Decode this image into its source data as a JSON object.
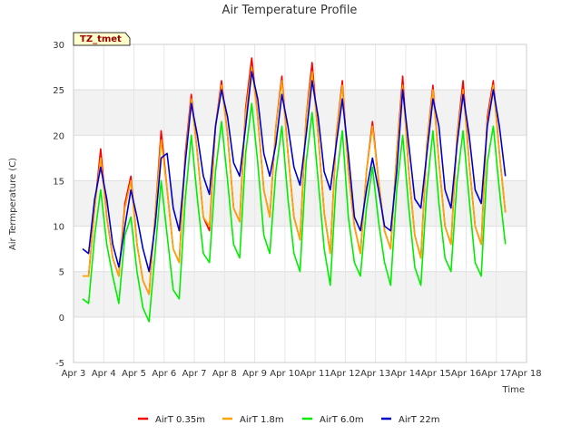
{
  "chart_data": {
    "type": "line",
    "title": "Air Temperature Profile",
    "xlabel": "Time",
    "ylabel": "Air Termperature (C)",
    "badge": "TZ_tmet",
    "xlim": [
      3,
      18
    ],
    "ylim": [
      -5,
      30
    ],
    "x_ticks": [
      "Apr 3",
      "Apr 4",
      "Apr 5",
      "Apr 6",
      "Apr 7",
      "Apr 8",
      "Apr 9",
      "Apr 10",
      "Apr 11",
      "Apr 12",
      "Apr 13",
      "Apr 14",
      "Apr 15",
      "Apr 16",
      "Apr 17",
      "Apr 18"
    ],
    "y_ticks": [
      -5,
      0,
      5,
      10,
      15,
      20,
      25,
      30
    ],
    "grid": true,
    "legend_position": "bottom",
    "x": [
      3.3,
      3.5,
      3.7,
      3.9,
      4.1,
      4.3,
      4.5,
      4.7,
      4.9,
      5.1,
      5.3,
      5.5,
      5.7,
      5.9,
      6.1,
      6.3,
      6.5,
      6.7,
      6.9,
      7.1,
      7.3,
      7.5,
      7.7,
      7.9,
      8.1,
      8.3,
      8.5,
      8.7,
      8.9,
      9.1,
      9.3,
      9.5,
      9.7,
      9.9,
      10.1,
      10.3,
      10.5,
      10.7,
      10.9,
      11.1,
      11.3,
      11.5,
      11.7,
      11.9,
      12.1,
      12.3,
      12.5,
      12.7,
      12.9,
      13.1,
      13.3,
      13.5,
      13.7,
      13.9,
      14.1,
      14.3,
      14.5,
      14.7,
      14.9,
      15.1,
      15.3,
      15.5,
      15.7,
      15.9,
      16.1,
      16.3,
      16.5,
      16.7,
      16.9,
      17.1,
      17.3
    ],
    "series": [
      {
        "name": "AirT 0.35m",
        "color": "#ff0000",
        "values": [
          4.5,
          4.5,
          12.0,
          18.5,
          11.0,
          6.5,
          4.5,
          12.5,
          15.5,
          8.0,
          4.0,
          2.5,
          11.0,
          20.5,
          14.0,
          7.5,
          6.0,
          18.0,
          24.5,
          18.0,
          11.0,
          9.5,
          21.0,
          26.0,
          20.0,
          12.0,
          10.5,
          23.0,
          28.5,
          22.0,
          14.0,
          11.0,
          21.0,
          26.5,
          18.0,
          11.0,
          8.5,
          22.0,
          28.0,
          20.0,
          11.5,
          7.0,
          20.0,
          26.0,
          16.0,
          10.0,
          7.0,
          16.0,
          21.5,
          15.0,
          9.5,
          7.5,
          18.0,
          26.5,
          16.0,
          9.0,
          6.5,
          19.0,
          25.5,
          17.0,
          10.0,
          8.0,
          20.0,
          26.0,
          17.0,
          10.0,
          8.0,
          22.0,
          26.0,
          18.0,
          11.5
        ]
      },
      {
        "name": "AirT 1.8m",
        "color": "#ffa500",
        "values": [
          4.5,
          4.5,
          12.0,
          17.5,
          11.0,
          6.5,
          4.5,
          12.0,
          15.0,
          8.0,
          4.0,
          2.5,
          11.0,
          19.5,
          14.0,
          7.5,
          6.0,
          17.5,
          24.0,
          18.0,
          11.0,
          10.0,
          21.0,
          25.5,
          20.0,
          12.0,
          10.5,
          22.5,
          27.5,
          22.0,
          14.0,
          11.0,
          21.0,
          26.0,
          18.0,
          11.0,
          8.5,
          22.0,
          27.0,
          20.0,
          11.5,
          7.0,
          20.0,
          25.5,
          16.0,
          10.0,
          7.0,
          16.0,
          21.0,
          15.0,
          9.5,
          7.5,
          18.0,
          25.5,
          16.0,
          9.0,
          6.5,
          19.0,
          25.0,
          17.0,
          10.0,
          8.0,
          20.0,
          25.0,
          17.0,
          10.0,
          8.0,
          21.5,
          25.5,
          18.0,
          11.5
        ]
      },
      {
        "name": "AirT 6.0m",
        "color": "#00ee00",
        "values": [
          2.0,
          1.5,
          9.0,
          14.0,
          8.0,
          4.5,
          1.5,
          9.0,
          11.0,
          5.0,
          1.0,
          -0.5,
          7.0,
          15.0,
          9.0,
          3.0,
          2.0,
          13.0,
          20.0,
          13.0,
          7.0,
          6.0,
          16.0,
          21.5,
          15.0,
          8.0,
          6.5,
          18.0,
          23.5,
          17.0,
          9.0,
          7.0,
          16.0,
          21.0,
          13.0,
          7.0,
          5.0,
          17.0,
          22.5,
          15.0,
          7.5,
          3.5,
          15.0,
          20.5,
          11.0,
          6.0,
          4.5,
          12.0,
          16.5,
          10.5,
          6.0,
          3.5,
          14.0,
          20.0,
          12.0,
          5.5,
          3.5,
          14.0,
          20.5,
          12.5,
          6.5,
          5.0,
          15.0,
          20.5,
          13.0,
          6.0,
          4.5,
          17.0,
          21.0,
          14.0,
          8.0
        ]
      },
      {
        "name": "AirT 22m",
        "color": "#0000cc",
        "values": [
          7.5,
          7.0,
          13.0,
          16.5,
          13.0,
          8.0,
          5.5,
          10.0,
          14.0,
          11.0,
          7.5,
          5.0,
          10.0,
          17.5,
          18.0,
          12.0,
          9.5,
          17.0,
          23.5,
          20.0,
          15.5,
          13.5,
          21.0,
          25.0,
          22.0,
          17.0,
          15.5,
          21.0,
          27.0,
          24.0,
          18.0,
          15.5,
          19.0,
          24.5,
          21.0,
          16.5,
          14.5,
          20.0,
          26.0,
          22.0,
          16.0,
          14.0,
          19.0,
          24.0,
          18.0,
          11.0,
          9.5,
          14.0,
          17.5,
          14.0,
          10.0,
          9.5,
          16.0,
          25.0,
          19.0,
          13.0,
          12.0,
          18.0,
          24.0,
          21.0,
          14.0,
          12.0,
          19.0,
          24.5,
          20.0,
          14.0,
          12.5,
          21.0,
          25.0,
          21.0,
          15.5
        ]
      }
    ]
  }
}
